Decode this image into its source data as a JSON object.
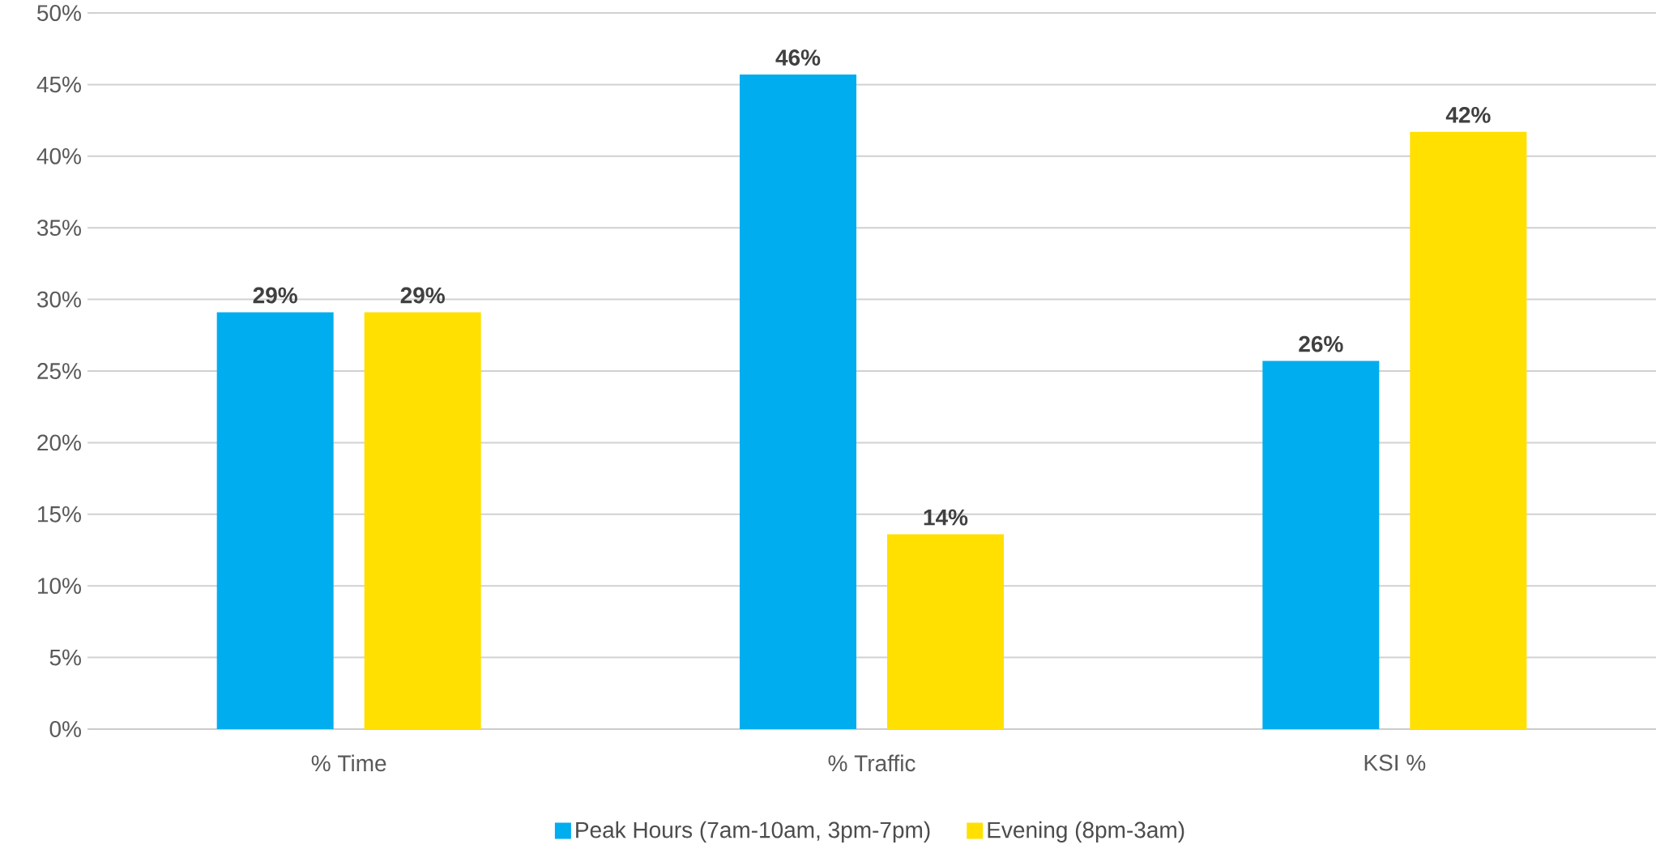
{
  "chart_data": {
    "type": "bar",
    "categories": [
      "% Time",
      "% Traffic",
      "KSI %"
    ],
    "series": [
      {
        "name": "Peak Hours (7am-10am, 3pm-7pm)",
        "color": "#00adef",
        "values": [
          29.1,
          45.7,
          25.7
        ],
        "value_labels": [
          "29%",
          "46%",
          "26%"
        ]
      },
      {
        "name": "Evening (8pm-3am)",
        "color": "#ffe000",
        "values": [
          29.1,
          13.6,
          41.7
        ],
        "value_labels": [
          "29%",
          "14%",
          "42%"
        ]
      }
    ],
    "ylim": [
      0,
      50
    ],
    "yticks": [
      {
        "value": 0,
        "label": "0%"
      },
      {
        "value": 5,
        "label": "5%"
      },
      {
        "value": 10,
        "label": "10%"
      },
      {
        "value": 15,
        "label": "15%"
      },
      {
        "value": 20,
        "label": "20%"
      },
      {
        "value": 25,
        "label": "25%"
      },
      {
        "value": 30,
        "label": "30%"
      },
      {
        "value": 35,
        "label": "35%"
      },
      {
        "value": 40,
        "label": "40%"
      },
      {
        "value": 45,
        "label": "45%"
      },
      {
        "value": 50,
        "label": "50%"
      }
    ],
    "grid": "y",
    "legend": "bottom"
  }
}
